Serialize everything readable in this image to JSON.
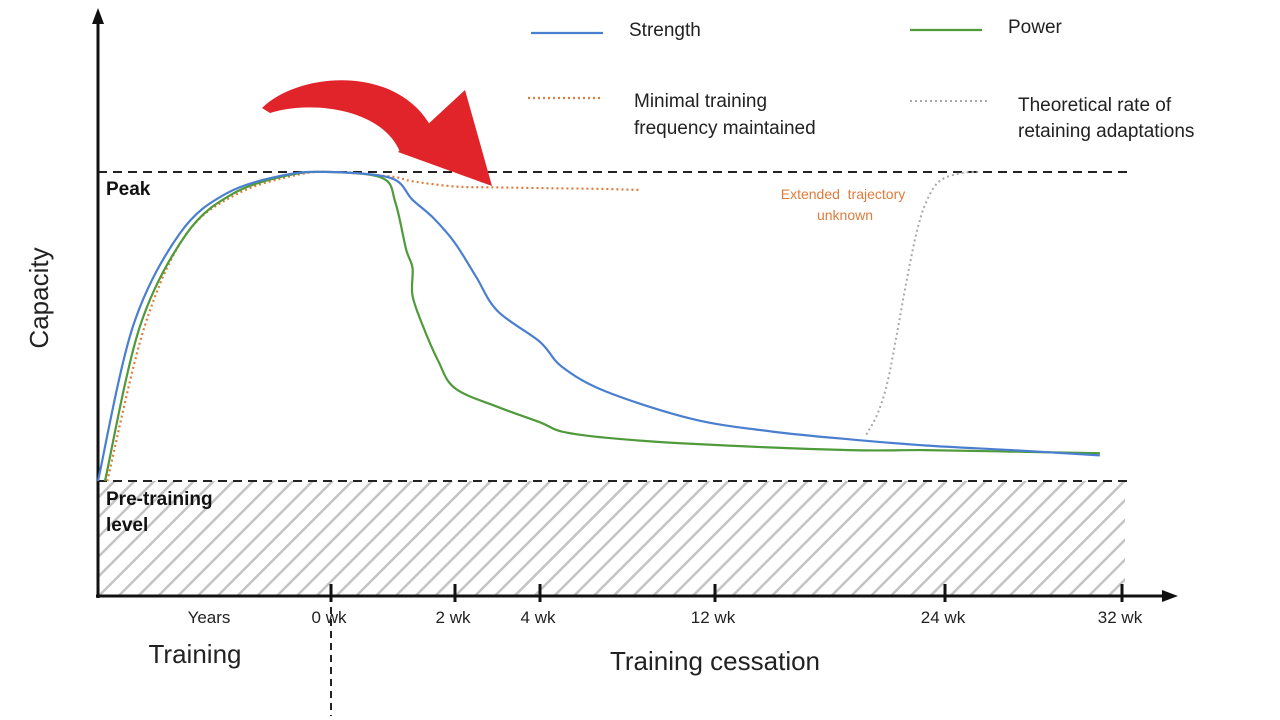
{
  "chart_data": {
    "type": "line",
    "title": "",
    "ylabel": "Capacity",
    "xlabel_training": "Training",
    "xlabel_cessation": "Training cessation",
    "training_tick_label": "Years",
    "ticks": [
      "0 wk",
      "2 wk",
      "4 wk",
      "12 wk",
      "24 wk",
      "32 wk"
    ],
    "tick_weeks": [
      0,
      2,
      4,
      12,
      24,
      32
    ],
    "ylim": [
      0,
      100
    ],
    "peak_level": 100,
    "pretraining_level": 0,
    "peak_label": "Peak",
    "pretraining_label_line1": "Pre-training",
    "pretraining_label_line2": "level",
    "annotation_line1": "Extended  trajectory",
    "annotation_line2": "unknown",
    "legend": [
      {
        "key": "strength",
        "label_lines": [
          "Strength"
        ],
        "color": "#4a7fd0",
        "style": "solid"
      },
      {
        "key": "power",
        "label_lines": [
          "Power"
        ],
        "color": "#4f9a3a",
        "style": "solid"
      },
      {
        "key": "minimal",
        "label_lines": [
          "Minimal training",
          "frequency maintained"
        ],
        "color": "#e07b3b",
        "style": "dotted"
      },
      {
        "key": "theoretical",
        "label_lines": [
          "Theoretical rate of",
          "retaining adaptations"
        ],
        "color": "#a8a8a8",
        "style": "dotted"
      }
    ],
    "series": [
      {
        "name": "Strength",
        "key": "strength",
        "points": [
          [
            0,
            0
          ],
          [
            0.15,
            50
          ],
          [
            0.35,
            80
          ],
          [
            0.55,
            93
          ],
          [
            0.8,
            99
          ],
          [
            1,
            100
          ],
          [
            1.5,
            98
          ],
          [
            2,
            91
          ],
          [
            2.5,
            85
          ],
          [
            3,
            77
          ],
          [
            3.5,
            66
          ],
          [
            4,
            55
          ],
          [
            5,
            45
          ],
          [
            6,
            37
          ],
          [
            8,
            29
          ],
          [
            12,
            20
          ],
          [
            16,
            16
          ],
          [
            20,
            13.5
          ],
          [
            24,
            11.5
          ],
          [
            28,
            10
          ],
          [
            32,
            8.3
          ]
        ]
      },
      {
        "name": "Power",
        "key": "power",
        "points": [
          [
            0.03,
            0
          ],
          [
            0.18,
            50
          ],
          [
            0.38,
            80
          ],
          [
            0.58,
            93
          ],
          [
            0.82,
            99
          ],
          [
            1,
            100
          ],
          [
            1.3,
            98
          ],
          [
            1.6,
            90
          ],
          [
            1.85,
            75
          ],
          [
            2,
            69
          ],
          [
            2,
            60
          ],
          [
            2.25,
            50
          ],
          [
            2.6,
            39
          ],
          [
            3,
            30
          ],
          [
            4,
            24
          ],
          [
            5,
            19
          ],
          [
            6,
            16
          ],
          [
            8,
            14
          ],
          [
            12,
            12
          ],
          [
            20,
            10
          ],
          [
            24,
            10
          ],
          [
            28,
            9.5
          ],
          [
            32,
            9
          ]
        ]
      },
      {
        "name": "Minimal training frequency maintained",
        "key": "minimal",
        "points": [
          [
            0.04,
            0
          ],
          [
            0.2,
            50
          ],
          [
            0.38,
            80
          ],
          [
            0.6,
            93
          ],
          [
            0.85,
            99
          ],
          [
            1,
            100
          ],
          [
            1.5,
            98.5
          ],
          [
            2,
            97
          ],
          [
            3,
            95.3
          ],
          [
            4,
            95
          ],
          [
            6,
            94.7
          ],
          [
            8,
            94.5
          ],
          [
            9.5,
            94.2
          ]
        ]
      },
      {
        "name": "Theoretical rate of retaining adaptations",
        "key": "theoretical",
        "points": [
          [
            20.9,
            15
          ],
          [
            21.5,
            22
          ],
          [
            22,
            32
          ],
          [
            22.5,
            48
          ],
          [
            23,
            65
          ],
          [
            23.5,
            80
          ],
          [
            24,
            90
          ],
          [
            24.7,
            97
          ],
          [
            25.7,
            99.6
          ],
          [
            26.5,
            100
          ]
        ]
      }
    ]
  }
}
